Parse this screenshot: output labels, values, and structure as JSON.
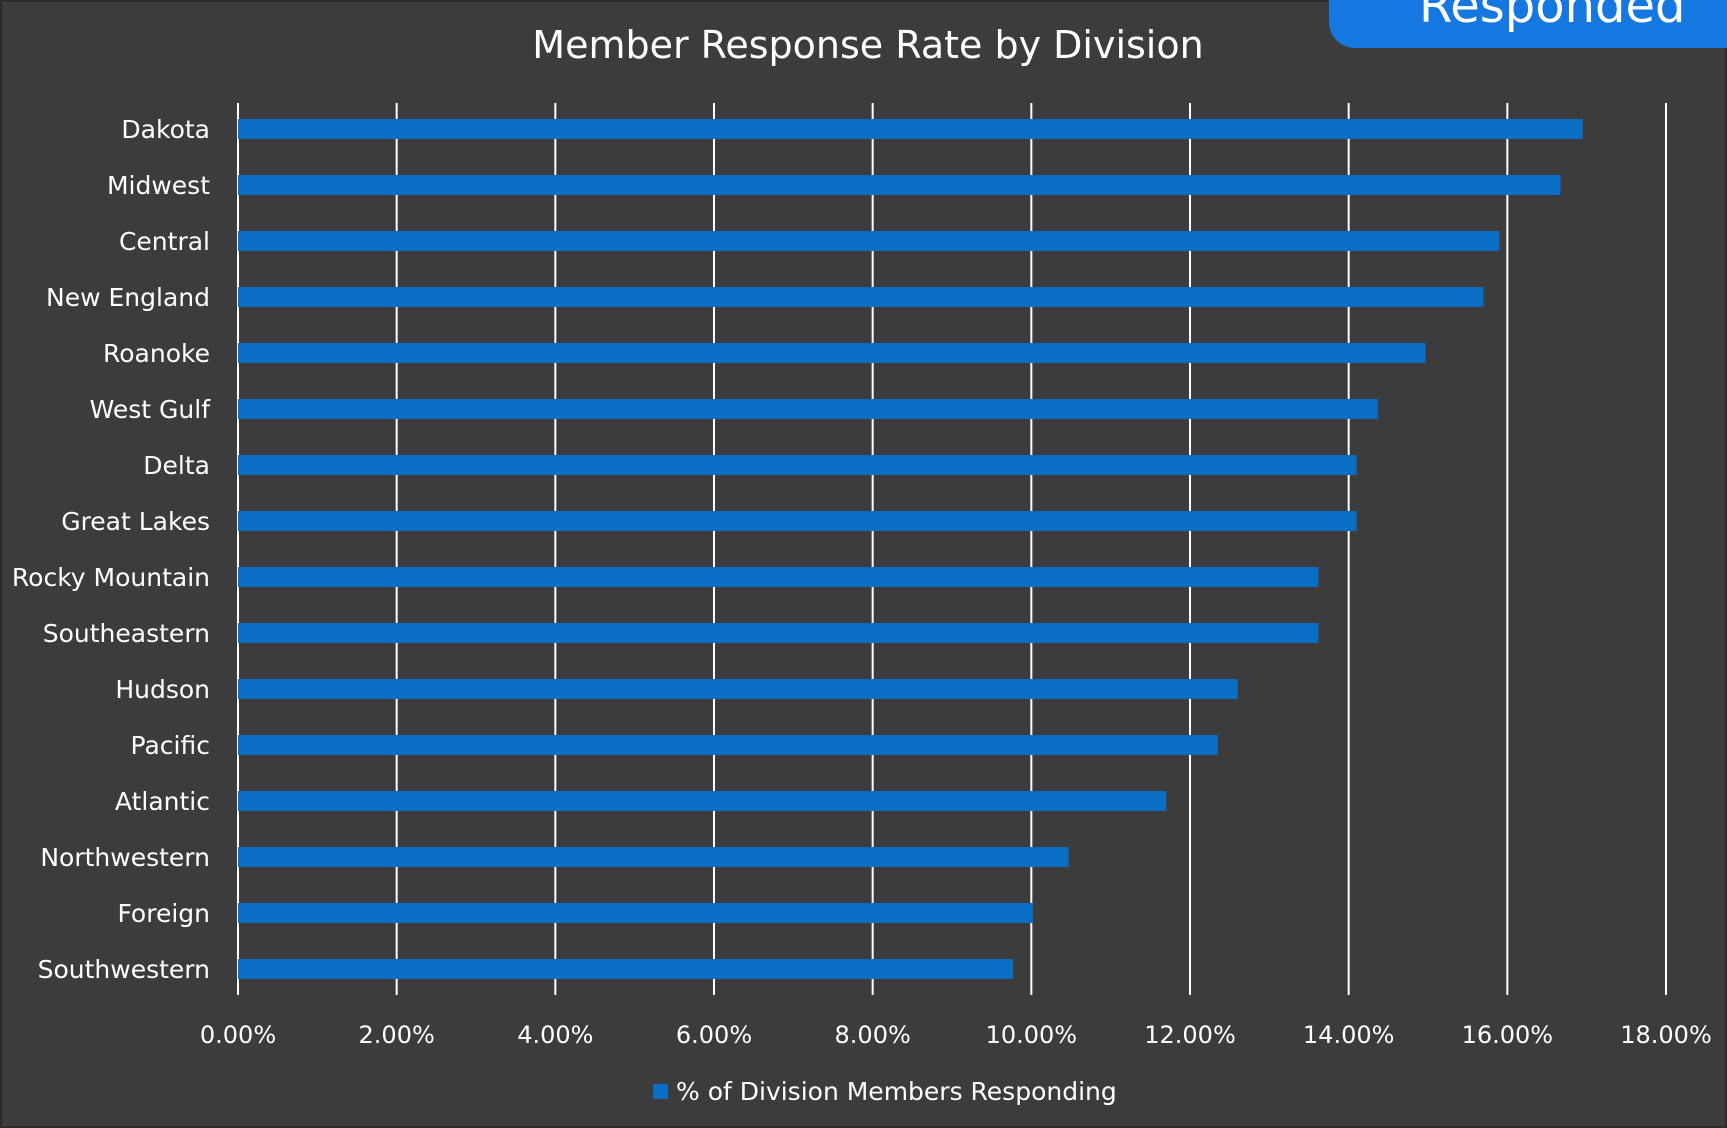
{
  "badge": {
    "label": "Responded"
  },
  "chart_data": {
    "type": "bar",
    "orientation": "horizontal",
    "title": "Member Response Rate by Division",
    "categories": [
      "Dakota",
      "Midwest",
      "Central",
      "New England",
      "Roanoke",
      "West Gulf",
      "Delta",
      "Great Lakes",
      "Rocky Mountain",
      "Southeastern",
      "Hudson",
      "Pacific",
      "Atlantic",
      "Northwestern",
      "Foreign",
      "Southwestern"
    ],
    "series": [
      {
        "name": "% of Division Members Responding",
        "values": [
          16.95,
          16.67,
          15.9,
          15.7,
          14.97,
          14.37,
          14.1,
          14.1,
          13.62,
          13.62,
          12.6,
          12.35,
          11.7,
          10.47,
          10.02,
          9.77
        ]
      }
    ],
    "xlim": [
      0,
      18
    ],
    "xticks": [
      "0.00%",
      "2.00%",
      "4.00%",
      "6.00%",
      "8.00%",
      "10.00%",
      "12.00%",
      "14.00%",
      "16.00%",
      "18.00%"
    ],
    "xlabel": "",
    "ylabel": "",
    "grid": "vertical",
    "legend": "bottom",
    "colors": {
      "bar": "#0a6ec4",
      "background": "#3c3c3c",
      "grid": "#ffffff",
      "text": "#ffffff",
      "badge": "#1478e0"
    }
  }
}
